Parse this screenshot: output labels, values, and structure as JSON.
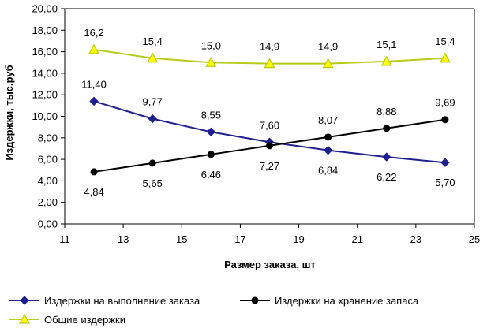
{
  "chart_data": {
    "type": "line",
    "title": "",
    "xlabel": "Размер заказа, шт",
    "ylabel": "Издержки, тыс.руб",
    "xlim": [
      11,
      25
    ],
    "ylim": [
      0,
      20
    ],
    "xticks": [
      11,
      13,
      15,
      17,
      19,
      21,
      23,
      25
    ],
    "xtick_labels": [
      "11",
      "13",
      "15",
      "17",
      "19",
      "21",
      "23",
      "25"
    ],
    "yticks": [
      0,
      2,
      4,
      6,
      8,
      10,
      12,
      14,
      16,
      18,
      20
    ],
    "ytick_labels": [
      "0,00",
      "2,00",
      "4,00",
      "6,00",
      "8,00",
      "10,00",
      "12,00",
      "14,00",
      "16,00",
      "18,00",
      "20,00"
    ],
    "grid": false,
    "x": [
      12,
      14,
      16,
      18,
      20,
      22,
      24
    ],
    "series": [
      {
        "name": "Издержки на выполнение заказа",
        "values": [
          11.4,
          9.77,
          8.55,
          7.6,
          6.84,
          6.22,
          5.7
        ],
        "labels": [
          "11,40",
          "9,77",
          "8,55",
          "7,60",
          "6,84",
          "6,22",
          "5,70"
        ],
        "label_position": [
          "above",
          "above",
          "above",
          "above",
          "below",
          "below",
          "below"
        ],
        "color": "#1f1f8f",
        "marker": "diamond"
      },
      {
        "name": "Издержки на хранение запаса",
        "values": [
          4.84,
          5.65,
          6.46,
          7.27,
          8.07,
          8.88,
          9.69
        ],
        "labels": [
          "4,84",
          "5,65",
          "6,46",
          "7,27",
          "8,07",
          "8,88",
          "9,69"
        ],
        "label_position": [
          "below",
          "below",
          "below",
          "below",
          "above",
          "above",
          "above"
        ],
        "color": "#000000",
        "marker": "circle"
      },
      {
        "name": "Общие издержки",
        "values": [
          16.2,
          15.4,
          15.0,
          14.9,
          14.9,
          15.1,
          15.4
        ],
        "labels": [
          "16,2",
          "15,4",
          "15,0",
          "14,9",
          "14,9",
          "15,1",
          "15,4"
        ],
        "label_position": [
          "above",
          "above",
          "above",
          "above",
          "above",
          "above",
          "above"
        ],
        "color": "#b5cc18",
        "marker": "triangle"
      }
    ],
    "legend": "bottom"
  }
}
